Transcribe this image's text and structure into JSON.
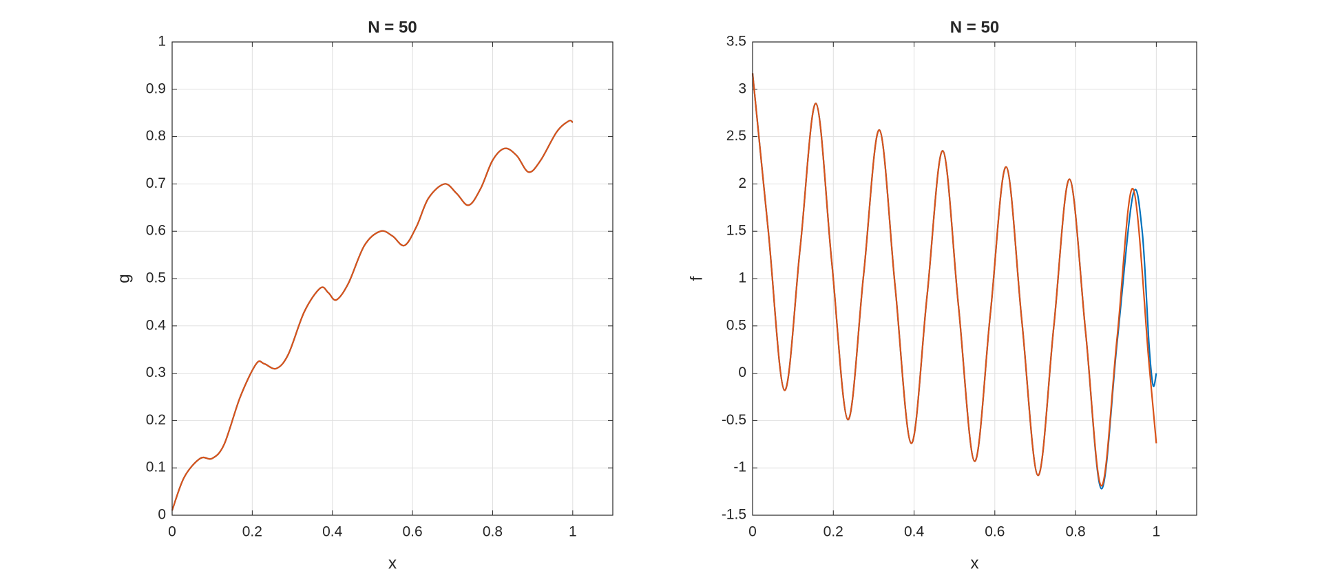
{
  "chart_data": [
    {
      "type": "line",
      "title": "N = 50",
      "xlabel": "x",
      "ylabel": "g",
      "xlim": [
        0,
        1.1
      ],
      "xticks": [
        0,
        0.2,
        0.4,
        0.6,
        0.8,
        1
      ],
      "ylim": [
        0,
        1
      ],
      "yticks": [
        0,
        0.1,
        0.2,
        0.3,
        0.4,
        0.5,
        0.6,
        0.7,
        0.8,
        0.9,
        1
      ],
      "grid": true,
      "series": [
        {
          "color": "#0072bd",
          "x": [
            0,
            0.03,
            0.07,
            0.1,
            0.13,
            0.17,
            0.21,
            0.23,
            0.26,
            0.29,
            0.33,
            0.37,
            0.39,
            0.41,
            0.44,
            0.48,
            0.52,
            0.55,
            0.58,
            0.61,
            0.64,
            0.68,
            0.71,
            0.74,
            0.77,
            0.8,
            0.83,
            0.86,
            0.89,
            0.92,
            0.96,
            0.99,
            1
          ],
          "values": [
            0.01,
            0.08,
            0.12,
            0.12,
            0.15,
            0.25,
            0.32,
            0.32,
            0.31,
            0.34,
            0.43,
            0.48,
            0.47,
            0.455,
            0.49,
            0.57,
            0.6,
            0.59,
            0.57,
            0.61,
            0.67,
            0.7,
            0.68,
            0.655,
            0.69,
            0.75,
            0.775,
            0.76,
            0.725,
            0.75,
            0.81,
            0.833,
            0.83
          ]
        },
        {
          "color": "#d95319",
          "x": [
            0,
            0.03,
            0.07,
            0.1,
            0.13,
            0.17,
            0.21,
            0.23,
            0.26,
            0.29,
            0.33,
            0.37,
            0.39,
            0.41,
            0.44,
            0.48,
            0.52,
            0.55,
            0.58,
            0.61,
            0.64,
            0.68,
            0.71,
            0.74,
            0.77,
            0.8,
            0.83,
            0.86,
            0.89,
            0.92,
            0.96,
            0.99,
            1
          ],
          "values": [
            0.01,
            0.08,
            0.12,
            0.12,
            0.15,
            0.25,
            0.32,
            0.32,
            0.31,
            0.34,
            0.43,
            0.48,
            0.47,
            0.455,
            0.49,
            0.57,
            0.6,
            0.59,
            0.57,
            0.61,
            0.67,
            0.7,
            0.68,
            0.655,
            0.69,
            0.75,
            0.775,
            0.76,
            0.725,
            0.75,
            0.81,
            0.833,
            0.83
          ]
        }
      ]
    },
    {
      "type": "line",
      "title": "N = 50",
      "xlabel": "x",
      "ylabel": "f",
      "xlim": [
        0,
        1.1
      ],
      "xticks": [
        0,
        0.2,
        0.4,
        0.6,
        0.8,
        1
      ],
      "ylim": [
        -1.5,
        3.5
      ],
      "yticks": [
        -1.5,
        -1,
        -0.5,
        0,
        0.5,
        1,
        1.5,
        2,
        2.5,
        3,
        3.5
      ],
      "grid": true,
      "series": [
        {
          "color": "#0072bd",
          "x": [
            0,
            0.039,
            0.079,
            0.118,
            0.157,
            0.196,
            0.236,
            0.275,
            0.314,
            0.353,
            0.393,
            0.432,
            0.471,
            0.51,
            0.55,
            0.589,
            0.628,
            0.667,
            0.707,
            0.746,
            0.785,
            0.825,
            0.864,
            0.903,
            0.942,
            0.965,
            0.982,
            0.992,
            1
          ],
          "values": [
            3.17,
            1.5,
            -0.18,
            1.33,
            2.85,
            1.18,
            -0.49,
            1.04,
            2.57,
            0.92,
            -0.74,
            0.81,
            2.35,
            0.71,
            -0.93,
            0.63,
            2.18,
            0.55,
            -1.08,
            0.49,
            2.05,
            0.43,
            -1.22,
            0.33,
            1.88,
            1.5,
            0.3,
            -0.13,
            0
          ]
        },
        {
          "color": "#d95319",
          "x": [
            0,
            0.039,
            0.079,
            0.118,
            0.157,
            0.196,
            0.236,
            0.275,
            0.314,
            0.353,
            0.393,
            0.432,
            0.471,
            0.51,
            0.55,
            0.589,
            0.628,
            0.667,
            0.707,
            0.746,
            0.785,
            0.825,
            0.864,
            0.903,
            0.942,
            0.982,
            1
          ],
          "values": [
            3.17,
            1.5,
            -0.18,
            1.33,
            2.85,
            1.18,
            -0.49,
            1.04,
            2.57,
            0.92,
            -0.74,
            0.81,
            2.35,
            0.71,
            -0.93,
            0.63,
            2.18,
            0.55,
            -1.08,
            0.49,
            2.05,
            0.43,
            -1.19,
            0.38,
            1.95,
            0.1,
            -0.74
          ]
        }
      ]
    }
  ]
}
